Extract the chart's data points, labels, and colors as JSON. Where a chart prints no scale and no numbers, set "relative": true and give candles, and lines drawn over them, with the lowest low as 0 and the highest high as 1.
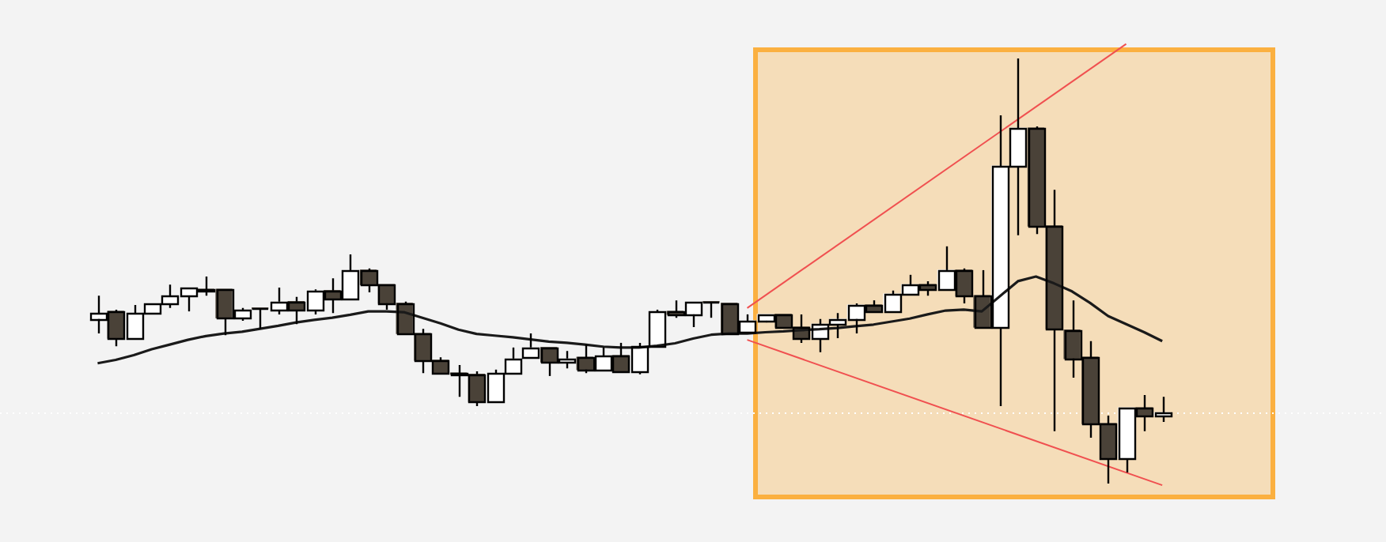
{
  "chart_data": {
    "type": "candlestick",
    "relative": true,
    "legend": false,
    "categories": [
      null,
      null,
      null,
      null,
      null,
      null,
      null,
      null,
      null,
      null,
      null,
      null,
      null,
      null,
      null,
      null,
      null,
      null,
      null,
      null,
      null,
      null,
      null,
      null,
      null,
      null,
      null,
      null,
      null,
      null,
      null,
      null,
      null,
      null,
      null,
      null,
      null,
      null,
      null,
      null,
      null,
      null,
      null,
      null,
      null,
      null,
      null,
      null,
      null,
      null,
      null,
      null,
      null,
      null,
      null,
      null,
      null,
      null,
      null,
      null
    ],
    "ohlc": [
      [
        0.387,
        0.442,
        0.353,
        0.401
      ],
      [
        0.405,
        0.409,
        0.323,
        0.342
      ],
      [
        0.342,
        0.42,
        0.342,
        0.401
      ],
      [
        0.401,
        0.424,
        0.398,
        0.424
      ],
      [
        0.424,
        0.468,
        0.413,
        0.442
      ],
      [
        0.442,
        0.461,
        0.405,
        0.461
      ],
      [
        0.457,
        0.487,
        0.442,
        0.454
      ],
      [
        0.457,
        0.457,
        0.349,
        0.39
      ],
      [
        0.39,
        0.413,
        0.383,
        0.409
      ],
      [
        0.413,
        0.413,
        0.364,
        0.411
      ],
      [
        0.409,
        0.461,
        0.398,
        0.428
      ],
      [
        0.428,
        0.439,
        0.375,
        0.409
      ],
      [
        0.409,
        0.457,
        0.398,
        0.454
      ],
      [
        0.454,
        0.483,
        0.401,
        0.435
      ],
      [
        0.435,
        0.539,
        0.435,
        0.502
      ],
      [
        0.502,
        0.506,
        0.45,
        0.468
      ],
      [
        0.468,
        0.468,
        0.409,
        0.424
      ],
      [
        0.424,
        0.428,
        0.353,
        0.353
      ],
      [
        0.353,
        0.364,
        0.26,
        0.29
      ],
      [
        0.29,
        0.297,
        0.26,
        0.26
      ],
      [
        0.26,
        0.279,
        0.204,
        0.257
      ],
      [
        0.257,
        0.264,
        0.182,
        0.193
      ],
      [
        0.193,
        0.268,
        0.193,
        0.26
      ],
      [
        0.26,
        0.32,
        0.26,
        0.294
      ],
      [
        0.297,
        0.353,
        0.294,
        0.32
      ],
      [
        0.32,
        0.32,
        0.253,
        0.286
      ],
      [
        0.286,
        0.312,
        0.271,
        0.294
      ],
      [
        0.297,
        0.327,
        0.26,
        0.268
      ],
      [
        0.268,
        0.32,
        0.268,
        0.301
      ],
      [
        0.301,
        0.331,
        0.264,
        0.264
      ],
      [
        0.264,
        0.331,
        0.257,
        0.323
      ],
      [
        0.323,
        0.409,
        0.323,
        0.405
      ],
      [
        0.405,
        0.431,
        0.39,
        0.398
      ],
      [
        0.398,
        0.428,
        0.368,
        0.428
      ],
      [
        0.428,
        0.428,
        0.39,
        0.426
      ],
      [
        0.424,
        0.424,
        0.353,
        0.353
      ],
      [
        0.357,
        0.398,
        0.357,
        0.383
      ],
      [
        0.383,
        0.398,
        0.379,
        0.398
      ],
      [
        0.398,
        0.398,
        0.368,
        0.368
      ],
      [
        0.368,
        0.398,
        0.331,
        0.342
      ],
      [
        0.342,
        0.387,
        0.309,
        0.375
      ],
      [
        0.375,
        0.401,
        0.342,
        0.387
      ],
      [
        0.387,
        0.424,
        0.353,
        0.42
      ],
      [
        0.42,
        0.431,
        0.405,
        0.405
      ],
      [
        0.405,
        0.454,
        0.405,
        0.446
      ],
      [
        0.446,
        0.491,
        0.446,
        0.468
      ],
      [
        0.468,
        0.476,
        0.442,
        0.457
      ],
      [
        0.457,
        0.558,
        0.457,
        0.502
      ],
      [
        0.502,
        0.506,
        0.424,
        0.442
      ],
      [
        0.442,
        0.502,
        0.368,
        0.368
      ],
      [
        0.368,
        0.866,
        0.182,
        0.747
      ],
      [
        0.747,
        1.0,
        0.584,
        0.836
      ],
      [
        0.836,
        0.84,
        0.587,
        0.606
      ],
      [
        0.606,
        0.691,
        0.123,
        0.364
      ],
      [
        0.361,
        0.431,
        0.249,
        0.294
      ],
      [
        0.297,
        0.335,
        0.108,
        0.141
      ],
      [
        0.141,
        0.16,
        0.0,
        0.059
      ],
      [
        0.059,
        0.178,
        0.026,
        0.178
      ],
      [
        0.178,
        0.208,
        0.123,
        0.16
      ],
      [
        0.16,
        0.204,
        0.145,
        0.167
      ]
    ],
    "colors": [
      "#ffffff",
      "#4a4238",
      "#ffffff",
      "#ffffff",
      "#ffffff",
      "#ffffff",
      "#4a4238",
      "#4a4238",
      "#ffffff",
      "#4a4238",
      "#ffffff",
      "#4a4238",
      "#ffffff",
      "#4a4238",
      "#ffffff",
      "#4a4238",
      "#4a4238",
      "#4a4238",
      "#4a4238",
      "#4a4238",
      "#4a4238",
      "#4a4238",
      "#ffffff",
      "#ffffff",
      "#ffffff",
      "#4a4238",
      "#ffffff",
      "#4a4238",
      "#ffffff",
      "#4a4238",
      "#ffffff",
      "#ffffff",
      "#4a4238",
      "#ffffff",
      "#4a4238",
      "#4a4238",
      "#ffffff",
      "#ffffff",
      "#4a4238",
      "#4a4238",
      "#ffffff",
      "#ffffff",
      "#ffffff",
      "#4a4238",
      "#ffffff",
      "#ffffff",
      "#4a4238",
      "#ffffff",
      "#4a4238",
      "#4a4238",
      "#ffffff",
      "#ffffff",
      "#4a4238",
      "#4a4238",
      "#4a4238",
      "#4a4238",
      "#4a4238",
      "#ffffff",
      "#4a4238",
      "#ffffff"
    ],
    "series": [
      {
        "type": "line",
        "color": "#1a1a1a",
        "values": [
          0.283,
          0.291,
          0.302,
          0.316,
          0.327,
          0.338,
          0.347,
          0.353,
          0.357,
          0.364,
          0.371,
          0.379,
          0.385,
          0.39,
          0.397,
          0.405,
          0.405,
          0.403,
          0.39,
          0.377,
          0.362,
          0.352,
          0.348,
          0.344,
          0.339,
          0.334,
          0.331,
          0.327,
          0.322,
          0.32,
          0.32,
          0.324,
          0.33,
          0.341,
          0.35,
          0.353,
          0.353,
          0.356,
          0.358,
          0.361,
          0.363,
          0.366,
          0.37,
          0.374,
          0.381,
          0.388,
          0.398,
          0.407,
          0.409,
          0.405,
          null,
          0.476,
          0.487,
          0.471,
          0.452,
          0.425,
          0.394,
          0.375,
          0.356,
          0.335
        ]
      },
      {
        "type": "line",
        "color": "#f05050",
        "values": [
          null,
          null,
          null,
          null,
          null,
          null,
          null,
          null,
          null,
          null,
          null,
          null,
          null,
          null,
          null,
          null,
          null,
          null,
          null,
          null,
          null,
          null,
          null,
          null,
          null,
          null,
          null,
          null,
          null,
          null,
          null,
          null,
          null,
          null,
          null,
          null,
          0.413,
          null,
          null,
          null,
          null,
          null,
          null,
          null,
          null,
          null,
          null,
          null,
          null,
          null,
          null,
          null,
          null,
          null,
          null,
          null,
          null,
          1.034,
          null,
          null
        ]
      },
      {
        "type": "line",
        "color": "#f05050",
        "values": [
          null,
          null,
          null,
          null,
          null,
          null,
          null,
          null,
          null,
          null,
          null,
          null,
          null,
          null,
          null,
          null,
          null,
          null,
          null,
          null,
          null,
          null,
          null,
          null,
          null,
          null,
          null,
          null,
          null,
          null,
          null,
          null,
          null,
          null,
          null,
          null,
          0.338,
          null,
          null,
          null,
          null,
          null,
          null,
          null,
          null,
          null,
          null,
          null,
          null,
          null,
          null,
          null,
          null,
          null,
          null,
          null,
          null,
          null,
          null,
          -0.004
        ]
      }
    ],
    "ref_lines": [
      {
        "axis": "y",
        "value": 0.167,
        "color": "#ffffff",
        "line_style": "dotted"
      }
    ]
  }
}
